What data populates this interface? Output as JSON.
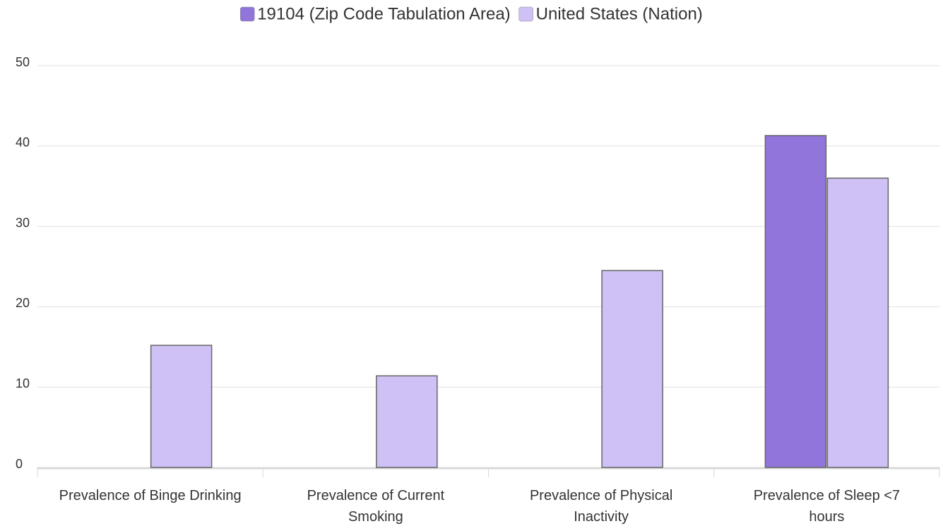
{
  "chart_data": {
    "type": "bar",
    "categories": [
      "Prevalence of Binge Drinking",
      "Prevalence of Current Smoking",
      "Prevalence of Physical Inactivity",
      "Prevalence of Sleep <7 hours"
    ],
    "series": [
      {
        "name": "19104 (Zip Code Tabulation Area)",
        "color": "#9175db",
        "values": [
          null,
          null,
          null,
          41.3
        ]
      },
      {
        "name": "United States (Nation)",
        "color": "#cfc1f5",
        "values": [
          15.2,
          11.4,
          24.5,
          36.0
        ]
      }
    ],
    "ylim": [
      0,
      50
    ],
    "yticks": [
      0,
      10,
      20,
      30,
      40,
      50
    ],
    "grid": true
  }
}
